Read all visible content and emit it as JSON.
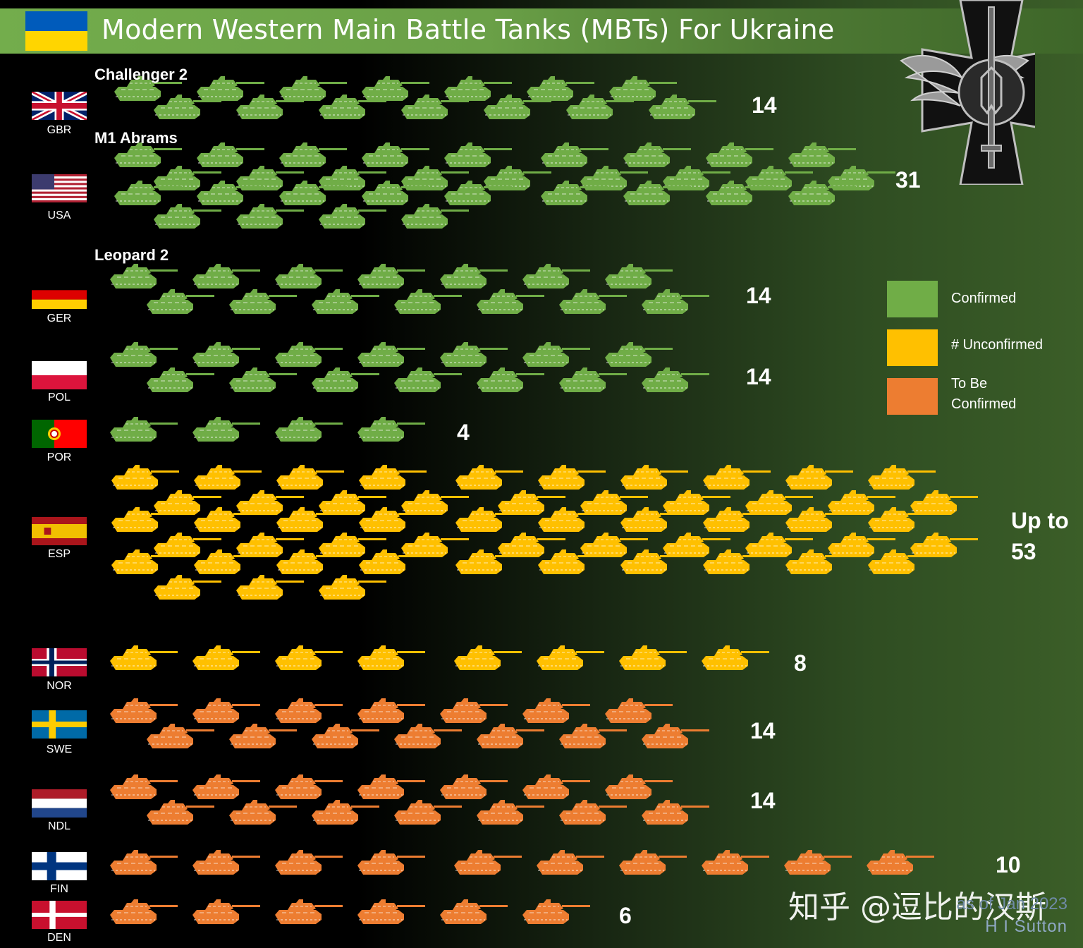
{
  "title": "Modern Western Main Battle Tanks (MBTs) For Ukraine",
  "legend": [
    {
      "key": "confirmed",
      "label": "Confirmed",
      "color": "#70ad47"
    },
    {
      "key": "unconfirmed",
      "label": "# Unconfirmed",
      "color": "#ffc000"
    },
    {
      "key": "tbc",
      "label": "To Be Confirmed",
      "color": "#ed7d31"
    }
  ],
  "icons": {
    "tank": "tank-icon",
    "emblem": "ukrainian-ground-forces-emblem"
  },
  "chart_data": {
    "type": "pictogram",
    "groups": [
      {
        "model": "Challenger 2",
        "countries": [
          {
            "code": "GBR",
            "count": 14,
            "count_label": "14",
            "status": "confirmed"
          }
        ]
      },
      {
        "model": "M1 Abrams",
        "countries": [
          {
            "code": "USA",
            "count": 31,
            "count_label": "31",
            "status": "confirmed"
          }
        ]
      },
      {
        "model": "Leopard 2",
        "countries": [
          {
            "code": "GER",
            "count": 14,
            "count_label": "14",
            "status": "confirmed"
          },
          {
            "code": "POL",
            "count": 14,
            "count_label": "14",
            "status": "confirmed"
          },
          {
            "code": "POR",
            "count": 4,
            "count_label": "4",
            "status": "confirmed"
          },
          {
            "code": "ESP",
            "count": 53,
            "count_label": "Up to 53",
            "status": "unconfirmed"
          },
          {
            "code": "NOR",
            "count": 8,
            "count_label": "8",
            "status": "unconfirmed"
          },
          {
            "code": "SWE",
            "count": 14,
            "count_label": "14",
            "status": "tbc"
          },
          {
            "code": "NDL",
            "count": 14,
            "count_label": "14",
            "status": "tbc"
          },
          {
            "code": "FIN",
            "count": 10,
            "count_label": "10",
            "status": "tbc"
          },
          {
            "code": "DEN",
            "count": 6,
            "count_label": "6",
            "status": "tbc"
          }
        ]
      }
    ]
  },
  "credit": {
    "date": "as of Jan 2023",
    "author": "H I Sutton"
  },
  "watermark": "知乎 @逗比的汉斯"
}
